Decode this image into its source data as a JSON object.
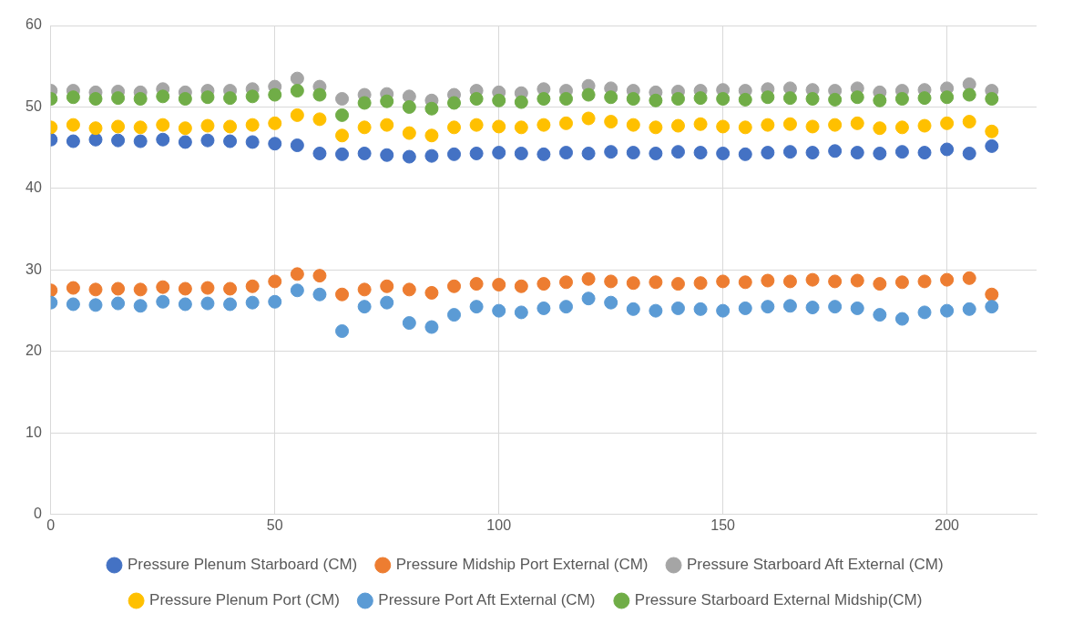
{
  "chart_data": {
    "type": "scatter",
    "x": [
      0,
      5,
      10,
      15,
      20,
      25,
      30,
      35,
      40,
      45,
      50,
      55,
      60,
      65,
      70,
      75,
      80,
      85,
      90,
      95,
      100,
      105,
      110,
      115,
      120,
      125,
      130,
      135,
      140,
      145,
      150,
      155,
      160,
      165,
      170,
      175,
      180,
      185,
      190,
      195,
      200,
      205,
      210
    ],
    "series": [
      {
        "name": "Pressure Plenum Starboard (CM)",
        "color": "#4472c4",
        "values": [
          46,
          45.8,
          46,
          45.9,
          45.8,
          46,
          45.7,
          45.9,
          45.8,
          45.7,
          45.5,
          45.3,
          44.3,
          44.2,
          44.3,
          44.1,
          43.9,
          44,
          44.2,
          44.3,
          44.4,
          44.3,
          44.2,
          44.4,
          44.3,
          44.5,
          44.4,
          44.3,
          44.5,
          44.4,
          44.3,
          44.2,
          44.4,
          44.5,
          44.4,
          44.6,
          44.4,
          44.3,
          44.5,
          44.4,
          44.8,
          44.3,
          45.2
        ]
      },
      {
        "name": "Pressure Midship Port External (CM)",
        "color": "#ed7d31",
        "values": [
          27.5,
          27.8,
          27.6,
          27.7,
          27.6,
          27.9,
          27.7,
          27.8,
          27.7,
          28,
          28.6,
          29.5,
          29.3,
          27,
          27.6,
          28,
          27.6,
          27.2,
          28,
          28.3,
          28.2,
          28,
          28.3,
          28.5,
          28.9,
          28.6,
          28.4,
          28.5,
          28.3,
          28.4,
          28.6,
          28.5,
          28.7,
          28.6,
          28.8,
          28.6,
          28.7,
          28.3,
          28.5,
          28.6,
          28.8,
          29,
          27
        ]
      },
      {
        "name": "Pressure Starboard Aft External (CM)",
        "color": "#a5a5a5",
        "values": [
          52,
          52,
          51.8,
          51.9,
          51.8,
          52.2,
          51.8,
          52,
          52,
          52.2,
          52.5,
          53.5,
          52.5,
          51,
          51.5,
          51.6,
          51.3,
          50.8,
          51.5,
          52,
          51.8,
          51.7,
          52.2,
          52,
          52.6,
          52.3,
          52,
          51.8,
          51.9,
          52,
          52.1,
          52,
          52.2,
          52.3,
          52.1,
          52,
          52.3,
          51.8,
          52,
          52.1,
          52.3,
          52.8,
          52
        ]
      },
      {
        "name": "Pressure Plenum Port (CM)",
        "color": "#ffc000",
        "values": [
          47.5,
          47.8,
          47.4,
          47.6,
          47.5,
          47.8,
          47.4,
          47.7,
          47.6,
          47.8,
          48,
          49,
          48.5,
          46.5,
          47.5,
          47.8,
          46.8,
          46.5,
          47.5,
          47.8,
          47.6,
          47.5,
          47.8,
          48,
          48.6,
          48.2,
          47.8,
          47.5,
          47.7,
          47.9,
          47.6,
          47.5,
          47.8,
          47.9,
          47.6,
          47.8,
          48,
          47.4,
          47.5,
          47.7,
          48,
          48.2,
          47
        ]
      },
      {
        "name": "Pressure Port Aft External (CM)",
        "color": "#5b9bd5",
        "values": [
          26,
          25.8,
          25.7,
          25.9,
          25.6,
          26.1,
          25.8,
          25.9,
          25.8,
          26,
          26.1,
          27.5,
          27,
          22.5,
          25.5,
          26,
          23.5,
          23,
          24.5,
          25.5,
          25,
          24.8,
          25.3,
          25.5,
          26.5,
          26,
          25.2,
          25,
          25.3,
          25.2,
          25,
          25.3,
          25.5,
          25.6,
          25.4,
          25.5,
          25.3,
          24.5,
          24,
          24.8,
          25,
          25.2,
          25.5
        ]
      },
      {
        "name": "Pressure Starboard External Midship(CM)",
        "color": "#70ad47",
        "values": [
          51,
          51.2,
          51,
          51.1,
          51,
          51.3,
          51,
          51.2,
          51.1,
          51.3,
          51.5,
          52,
          51.5,
          49,
          50.5,
          50.7,
          50,
          49.8,
          50.5,
          51,
          50.8,
          50.6,
          51,
          51,
          51.5,
          51.2,
          51,
          50.8,
          51,
          51.1,
          51,
          50.9,
          51.2,
          51.1,
          51,
          50.9,
          51.2,
          50.8,
          51,
          51.1,
          51.2,
          51.5,
          51
        ]
      }
    ],
    "xlim": [
      0,
      220
    ],
    "xticks": [
      0,
      50,
      100,
      150,
      200
    ],
    "ylim": [
      0,
      60
    ],
    "yticks": [
      0,
      10,
      20,
      30,
      40,
      50,
      60
    ],
    "grid": true,
    "legend": "bottom",
    "marker": "circle"
  }
}
